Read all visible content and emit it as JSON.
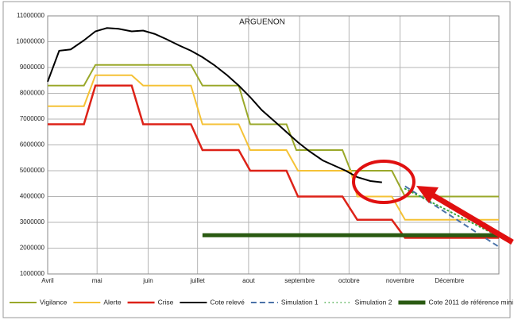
{
  "chart_data": {
    "type": "line",
    "title": "ARGUENON",
    "xlim": [
      0,
      274
    ],
    "xticks": [
      {
        "value": 0,
        "label": "Avril"
      },
      {
        "value": 30,
        "label": "mai"
      },
      {
        "value": 61,
        "label": "juin"
      },
      {
        "value": 91,
        "label": "juillet"
      },
      {
        "value": 122,
        "label": "aout"
      },
      {
        "value": 153,
        "label": "septembre"
      },
      {
        "value": 183,
        "label": "octobre"
      },
      {
        "value": 214,
        "label": "novembre"
      },
      {
        "value": 244,
        "label": "Décembre"
      }
    ],
    "ylim": [
      1000000,
      11000000
    ],
    "yticks": [
      1000000,
      2000000,
      3000000,
      4000000,
      5000000,
      6000000,
      7000000,
      8000000,
      9000000,
      10000000,
      11000000
    ],
    "grid": true,
    "legend": "bottom",
    "series": [
      {
        "name": "Vigilance",
        "color": "#9aa82a",
        "width": 2,
        "dash": "solid",
        "x": [
          0,
          22,
          29,
          87,
          94,
          116,
          123,
          145,
          151,
          179,
          184,
          209,
          217,
          274
        ],
        "values": [
          8300000,
          8300000,
          9100000,
          9100000,
          8300000,
          8300000,
          6800000,
          6800000,
          5800000,
          5800000,
          5000000,
          5000000,
          4000000,
          4000000
        ]
      },
      {
        "name": "Alerte",
        "color": "#f5c236",
        "width": 2,
        "dash": "solid",
        "x": [
          0,
          22,
          29,
          51,
          58,
          87,
          94,
          116,
          123,
          145,
          152,
          184,
          188,
          209,
          217,
          274
        ],
        "values": [
          7500000,
          7500000,
          8700000,
          8700000,
          8300000,
          8300000,
          6800000,
          6800000,
          5800000,
          5800000,
          5000000,
          5000000,
          4000000,
          4000000,
          3100000,
          3100000
        ]
      },
      {
        "name": "Crise",
        "color": "#dd2218",
        "width": 2.5,
        "dash": "solid",
        "x": [
          0,
          22,
          29,
          51,
          58,
          87,
          94,
          116,
          123,
          145,
          152,
          179,
          188,
          209,
          217,
          274
        ],
        "values": [
          6800000,
          6800000,
          8300000,
          8300000,
          6800000,
          6800000,
          5800000,
          5800000,
          5000000,
          5000000,
          4000000,
          4000000,
          3100000,
          3100000,
          2400000,
          2400000
        ]
      },
      {
        "name": "Cote relevé",
        "color": "#000000",
        "width": 2,
        "dash": "solid",
        "x": [
          0,
          7,
          14,
          22,
          29,
          36,
          43,
          51,
          58,
          65,
          72,
          80,
          87,
          94,
          101,
          109,
          116,
          123,
          130,
          138,
          145,
          152,
          159,
          167,
          174,
          181,
          188,
          196,
          203
        ],
        "values": [
          8450000,
          9650000,
          9700000,
          10050000,
          10400000,
          10530000,
          10500000,
          10400000,
          10430000,
          10300000,
          10100000,
          9850000,
          9650000,
          9400000,
          9100000,
          8700000,
          8300000,
          7850000,
          7350000,
          6900000,
          6500000,
          6100000,
          5750000,
          5400000,
          5200000,
          5000000,
          4750000,
          4600000,
          4550000
        ]
      },
      {
        "name": "Simulation 1",
        "color": "#4a72a8",
        "width": 2,
        "dash": "7 4",
        "x": [
          217,
          274
        ],
        "values": [
          4400000,
          2050000
        ]
      },
      {
        "name": "Simulation 2",
        "color": "#3aa53a",
        "width": 2,
        "dash": "1 4",
        "x": [
          217,
          274
        ],
        "values": [
          4300000,
          2450000
        ]
      },
      {
        "name": "Cote 2011 de référence mini",
        "color": "#2a5a12",
        "width": 5,
        "dash": "solid",
        "x": [
          94,
          274
        ],
        "values": [
          2500000,
          2500000
        ]
      }
    ]
  }
}
